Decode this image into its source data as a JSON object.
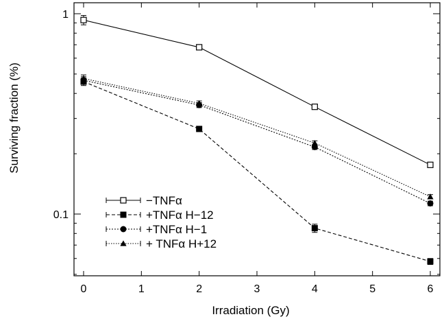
{
  "chart_data": {
    "type": "line",
    "xlabel": "Irradiation (Gy)",
    "ylabel": "Surviving fraction (%)",
    "xlim": [
      -0.15,
      6.15
    ],
    "ylim": [
      0.05,
      1.0
    ],
    "yscale": "log",
    "x_ticks": [
      0,
      1,
      2,
      3,
      4,
      5,
      6
    ],
    "x_tick_labels": [
      "0",
      "1",
      "2",
      "3",
      "4",
      "5",
      "6"
    ],
    "y_ticks": [
      0.1,
      1
    ],
    "y_tick_labels": [
      "0.1",
      "1"
    ],
    "grid": false,
    "legend_position": "bottom-left",
    "series": [
      {
        "name": "−TNFα",
        "marker": "open-square",
        "line": "solid",
        "x": [
          0,
          2,
          4,
          6
        ],
        "y": [
          0.93,
          0.68,
          0.343,
          0.176
        ],
        "err": [
          0.05,
          0.02,
          0.01,
          0.005
        ]
      },
      {
        "name": "+TNFα H−12",
        "marker": "filled-square",
        "line": "dashed",
        "x": [
          0,
          2,
          4,
          6
        ],
        "y": [
          0.458,
          0.266,
          0.085,
          0.058
        ],
        "err": [
          0.02,
          0.008,
          0.004,
          0.002
        ]
      },
      {
        "name": "+TNFα H−1",
        "marker": "filled-circle",
        "line": "dotted",
        "x": [
          0,
          2,
          4,
          6
        ],
        "y": [
          0.465,
          0.35,
          0.216,
          0.113
        ],
        "err": [
          0.02,
          0.01,
          0.006,
          0.003
        ]
      },
      {
        "name": "+ TNFα H+12",
        "marker": "filled-triangle",
        "line": "dash-dot",
        "x": [
          0,
          2,
          4,
          6
        ],
        "y": [
          0.475,
          0.357,
          0.226,
          0.122
        ],
        "err": [
          0.02,
          0.01,
          0.006,
          0.003
        ]
      }
    ]
  }
}
